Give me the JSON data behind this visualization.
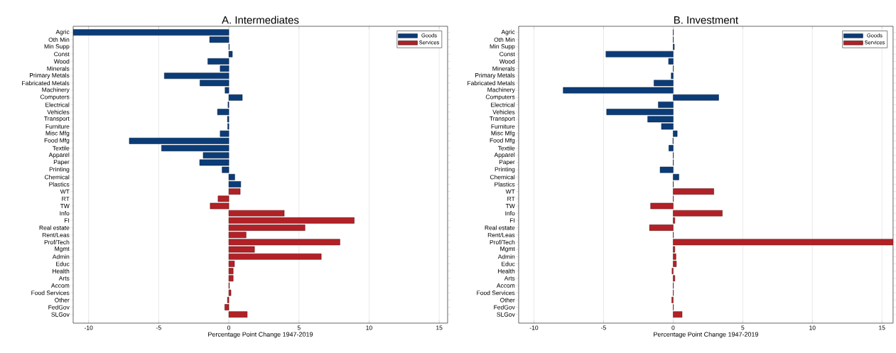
{
  "chart_data": [
    {
      "type": "bar",
      "orientation": "horizontal",
      "title": "A. Intermediates",
      "xlabel": "Percentage Point Change 1947-2019",
      "categories": [
        "Agric",
        "Oth Min",
        "Min Supp",
        "Const",
        "Wood",
        "Minerals",
        "Primary Metals",
        "Fabricated Metals",
        "Machinery",
        "Computers",
        "Electrical",
        "Vehicles",
        "Transport",
        "Furniture",
        "Misc Mfg",
        "Food Mfg",
        "Textile",
        "Apparel",
        "Paper",
        "Printing",
        "Chemical",
        "Plastics",
        "WT",
        "RT",
        "TW",
        "Info",
        "FI",
        "Real estate",
        "Rent/Leas",
        "Prof/Tech",
        "Mgmt",
        "Admin",
        "Educ",
        "Health",
        "Arts",
        "Accom",
        "Food Services",
        "Other",
        "FedGov",
        "SLGov"
      ],
      "series": [
        {
          "name": "Goods",
          "color": "#0b3c78",
          "values": [
            -11.1,
            -1.37,
            0.03,
            0.25,
            -1.5,
            -0.62,
            -4.6,
            -2.06,
            -0.27,
            0.96,
            -0.06,
            -0.81,
            -0.1,
            -0.08,
            -0.62,
            -7.1,
            -4.8,
            -1.83,
            -2.08,
            -0.48,
            0.42,
            0.85,
            null,
            null,
            null,
            null,
            null,
            null,
            null,
            null,
            null,
            null,
            null,
            null,
            null,
            null,
            null,
            null,
            null,
            null
          ]
        },
        {
          "name": "Services",
          "color": "#b22126",
          "values": [
            null,
            null,
            null,
            null,
            null,
            null,
            null,
            null,
            null,
            null,
            null,
            null,
            null,
            null,
            null,
            null,
            null,
            null,
            null,
            null,
            null,
            null,
            0.81,
            -0.77,
            -1.33,
            3.95,
            8.94,
            5.43,
            1.23,
            7.92,
            1.83,
            6.59,
            0.4,
            0.31,
            0.31,
            0.04,
            0.15,
            -0.1,
            -0.29,
            1.31
          ]
        }
      ],
      "xlim": [
        -11.1,
        15.6
      ],
      "xticks": [
        -10,
        -5,
        0,
        5,
        10,
        15
      ],
      "grid": "x",
      "legend": "top right"
    },
    {
      "type": "bar",
      "orientation": "horizontal",
      "title": "B. Investment",
      "xlabel": "Percentage Point Change 1947-2019",
      "categories": [
        "Agric",
        "Oth Min",
        "Min Supp",
        "Const",
        "Wood",
        "Minerals",
        "Primary Metals",
        "Fabricated Metals",
        "Machinery",
        "Computers",
        "Electrical",
        "Vehicles",
        "Transport",
        "Furniture",
        "Misc Mfg",
        "Food Mfg",
        "Textile",
        "Apparel",
        "Paper",
        "Printing",
        "Chemical",
        "Plastics",
        "WT",
        "RT",
        "TW",
        "Info",
        "FI",
        "Real estate",
        "Rent/Leas",
        "Prof/Tech",
        "Mgmt",
        "Admin",
        "Educ",
        "Health",
        "Arts",
        "Accom",
        "Food Services",
        "Other",
        "FedGov",
        "SLGov"
      ],
      "series": [
        {
          "name": "Goods",
          "color": "#0b3c78",
          "values": [
            0.02,
            0.02,
            0.08,
            -4.83,
            -0.33,
            0.02,
            -0.14,
            -1.38,
            -7.9,
            3.27,
            -1.07,
            -4.78,
            -1.83,
            -0.84,
            0.29,
            -0.02,
            -0.31,
            0.02,
            0.02,
            -0.94,
            0.41,
            0.02,
            null,
            null,
            null,
            null,
            null,
            null,
            null,
            null,
            null,
            null,
            null,
            null,
            null,
            null,
            null,
            null,
            null,
            null
          ]
        },
        {
          "name": "Services",
          "color": "#b22126",
          "values": [
            null,
            null,
            null,
            null,
            null,
            null,
            null,
            null,
            null,
            null,
            null,
            null,
            null,
            null,
            null,
            null,
            null,
            null,
            null,
            null,
            null,
            null,
            2.92,
            0.02,
            -1.62,
            3.53,
            0.12,
            -1.7,
            0.02,
            15.8,
            0.12,
            0.2,
            0.23,
            -0.08,
            0.12,
            0.02,
            0.02,
            -0.1,
            0.02,
            0.64
          ]
        }
      ],
      "xlim": [
        -11.1,
        15.8
      ],
      "xticks": [
        -10,
        -5,
        0,
        5,
        10,
        15
      ],
      "grid": "x",
      "legend": "top right"
    }
  ]
}
